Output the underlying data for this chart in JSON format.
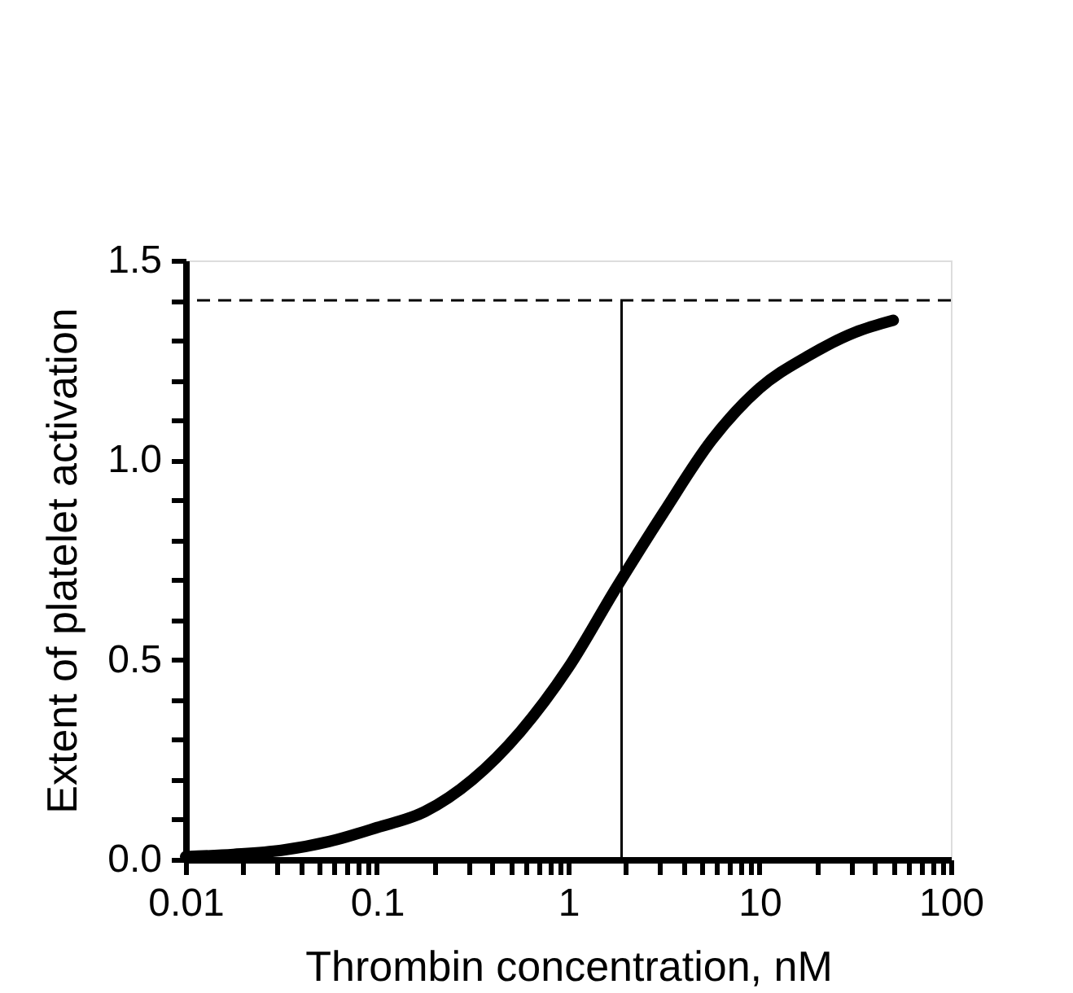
{
  "chart_data": {
    "type": "line",
    "xlabel": "Thrombin concentration, nM",
    "ylabel": "Extent of platelet activation",
    "log": "x",
    "x": [
      0.01,
      0.0178,
      0.0316,
      0.0562,
      0.1,
      0.178,
      0.316,
      0.562,
      1,
      1.78,
      3.16,
      5.62,
      10,
      17.8,
      31.6,
      50
    ],
    "series": [
      {
        "color": "#000000",
        "values": [
          0.007,
          0.013,
          0.023,
          0.045,
          0.08,
          0.12,
          0.2,
          0.32,
          0.48,
          0.68,
          0.87,
          1.05,
          1.18,
          1.26,
          1.32,
          1.35
        ]
      }
    ],
    "xlim": [
      0.01,
      100
    ],
    "xticks": [
      0.01,
      {
        "value": 0.02,
        "label": null
      },
      {
        "value": 0.03,
        "label": null
      },
      {
        "value": 0.04,
        "label": null
      },
      {
        "value": 0.05,
        "label": null
      },
      {
        "value": 0.06,
        "label": null
      },
      {
        "value": 0.07,
        "label": null
      },
      {
        "value": 0.08,
        "label": null
      },
      {
        "value": 0.09,
        "label": null
      },
      0.1,
      {
        "value": 0.2,
        "label": null
      },
      {
        "value": 0.3,
        "label": null
      },
      {
        "value": 0.4,
        "label": null
      },
      {
        "value": 0.5,
        "label": null
      },
      {
        "value": 0.6,
        "label": null
      },
      {
        "value": 0.7,
        "label": null
      },
      {
        "value": 0.8,
        "label": null
      },
      {
        "value": 0.9,
        "label": null
      },
      1,
      {
        "value": 2,
        "label": null
      },
      {
        "value": 3,
        "label": null
      },
      {
        "value": 4,
        "label": null
      },
      {
        "value": 5,
        "label": null
      },
      {
        "value": 6,
        "label": null
      },
      {
        "value": 7,
        "label": null
      },
      {
        "value": 8,
        "label": null
      },
      {
        "value": 9,
        "label": null
      },
      10,
      {
        "value": 20,
        "label": null
      },
      {
        "value": 30,
        "label": null
      },
      {
        "value": 40,
        "label": null
      },
      {
        "value": 50,
        "label": null
      },
      {
        "value": 60,
        "label": null
      },
      {
        "value": 70,
        "label": null
      },
      {
        "value": 80,
        "label": null
      },
      {
        "value": 90,
        "label": null
      },
      100
    ],
    "ylim": [
      0,
      1.5
    ],
    "yticks": [
      {
        "value": 0,
        "label": "0.0"
      },
      {
        "value": 0.1,
        "label": null
      },
      {
        "value": 0.2,
        "label": null
      },
      {
        "value": 0.3,
        "label": null
      },
      {
        "value": 0.4,
        "label": null
      },
      {
        "value": 0.5,
        "label": "0.5"
      },
      {
        "value": 0.6,
        "label": null
      },
      {
        "value": 0.7,
        "label": null
      },
      {
        "value": 0.8,
        "label": null
      },
      {
        "value": 0.9,
        "label": null
      },
      {
        "value": 1.0,
        "label": "1.0"
      },
      {
        "value": 1.1,
        "label": null
      },
      {
        "value": 1.2,
        "label": null
      },
      {
        "value": 1.3,
        "label": null
      },
      {
        "value": 1.4,
        "label": null
      },
      {
        "value": 1.5,
        "label": "1.5"
      }
    ],
    "ref_lines": [
      {
        "axis": "y",
        "value": 1.4,
        "line_style": "dashed"
      },
      {
        "axis": "x",
        "value": 1.9,
        "line_style": "solid"
      }
    ],
    "grid": false,
    "line_style": "solid"
  }
}
